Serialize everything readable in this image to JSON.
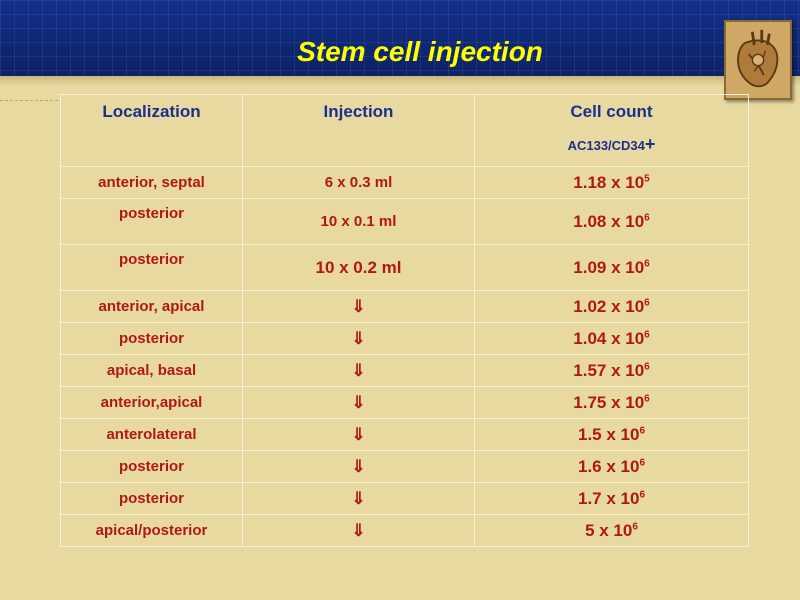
{
  "slide": {
    "title": "Stem cell injection"
  },
  "table": {
    "headers": {
      "localization": "Localization",
      "injection": "Injection",
      "cell_count": "Cell count",
      "cell_count_sub": "AC133/CD34",
      "cell_count_sub_plus": "+"
    },
    "rows": [
      {
        "localization": "anterior, septal",
        "injection": "6 x 0.3 ml",
        "count_mantissa": "1.18 x 10",
        "count_exp": "5"
      },
      {
        "localization": "posterior",
        "injection": "10 x 0.1 ml",
        "count_mantissa": "1.08 x 10",
        "count_exp": "6"
      },
      {
        "localization": "posterior",
        "injection": "10 x 0.2 ml",
        "count_mantissa": "1.09 x 10",
        "count_exp": "6"
      },
      {
        "localization": "anterior, apical",
        "injection": "⇓",
        "count_mantissa": "1.02 x 10",
        "count_exp": "6"
      },
      {
        "localization": "posterior",
        "injection": "⇓",
        "count_mantissa": "1.04 x 10",
        "count_exp": "6"
      },
      {
        "localization": "apical, basal",
        "injection": "⇓",
        "count_mantissa": "1.57 x 10",
        "count_exp": "6"
      },
      {
        "localization": "anterior,apical",
        "injection": "⇓",
        "count_mantissa": "1.75 x 10",
        "count_exp": "6"
      },
      {
        "localization": "anterolateral",
        "injection": "⇓",
        "count_mantissa": "1.5 x 10",
        "count_exp": "6"
      },
      {
        "localization": "posterior",
        "injection": "⇓",
        "count_mantissa": "1.6 x 10",
        "count_exp": "6"
      },
      {
        "localization": "posterior",
        "injection": "⇓",
        "count_mantissa": "1.7 x 10",
        "count_exp": "6"
      },
      {
        "localization": "apical/posterior",
        "injection": "⇓",
        "count_mantissa": "5 x 10",
        "count_exp": "6"
      }
    ]
  },
  "logo": {
    "icon": "heart-illustration-icon"
  },
  "colors": {
    "header_blue": "#0f2a73",
    "title_yellow": "#ffff00",
    "background": "#e8d9a0",
    "header_text": "#1a2f8e",
    "cell_text": "#b01818"
  }
}
